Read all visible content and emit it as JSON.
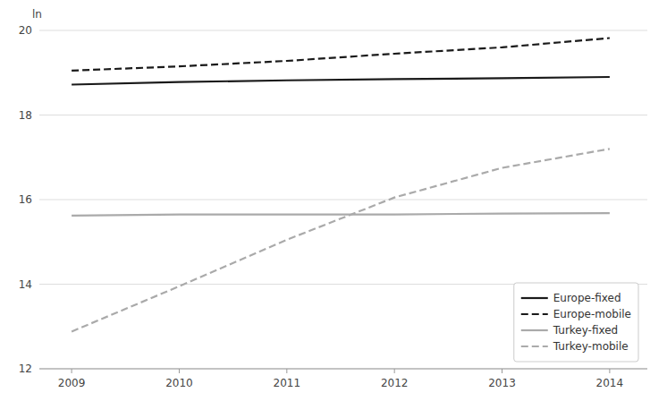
{
  "chart_data": {
    "type": "line",
    "y_label": "ln",
    "x": [
      2009,
      2010,
      2011,
      2012,
      2013,
      2014
    ],
    "xlim": [
      2008.7,
      2014.35
    ],
    "xticks": [
      2009,
      2010,
      2011,
      2012,
      2013,
      2014
    ],
    "ylim": [
      12,
      20
    ],
    "yticks": [
      12,
      14,
      16,
      18,
      20
    ],
    "grid": true,
    "legend": "lower right",
    "series": [
      {
        "name": "Europe-fixed",
        "color": "#1a1a1a",
        "line_style": "solid",
        "values": [
          18.72,
          18.78,
          18.82,
          18.85,
          18.87,
          18.9
        ]
      },
      {
        "name": "Europe-mobile",
        "color": "#1a1a1a",
        "line_style": "dashed",
        "values": [
          19.05,
          19.15,
          19.28,
          19.45,
          19.6,
          19.82
        ]
      },
      {
        "name": "Turkey-fixed",
        "color": "#aaaaaa",
        "line_style": "solid",
        "values": [
          15.62,
          15.65,
          15.65,
          15.65,
          15.67,
          15.68
        ]
      },
      {
        "name": "Turkey-mobile",
        "color": "#aaaaaa",
        "line_style": "dashed",
        "values": [
          12.88,
          13.95,
          15.05,
          16.05,
          16.75,
          17.2
        ]
      }
    ]
  }
}
